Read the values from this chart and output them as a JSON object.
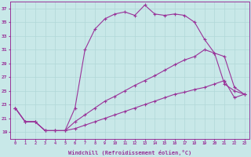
{
  "xlabel": "Windchill (Refroidissement éolien,°C)",
  "background_color": "#c8e8e8",
  "line_color": "#993399",
  "grid_color": "#aacccc",
  "x_ticks": [
    0,
    1,
    2,
    3,
    4,
    5,
    6,
    7,
    8,
    9,
    10,
    11,
    12,
    13,
    14,
    15,
    16,
    17,
    18,
    19,
    20,
    21,
    22,
    23
  ],
  "y_ticks": [
    19,
    21,
    23,
    25,
    27,
    29,
    31,
    33,
    35,
    37
  ],
  "ylim": [
    18.0,
    38.0
  ],
  "xlim": [
    -0.5,
    23.5
  ],
  "line1_x": [
    0,
    1,
    2,
    3,
    4,
    5,
    6,
    7,
    8,
    9,
    10,
    11,
    12,
    13,
    14,
    15,
    16,
    17,
    18,
    19,
    20,
    21,
    22,
    23
  ],
  "line1_y": [
    22.5,
    20.5,
    20.5,
    19.2,
    19.2,
    19.2,
    22.5,
    31.0,
    34.0,
    35.5,
    36.2,
    36.5,
    36.0,
    37.5,
    36.2,
    36.0,
    36.2,
    36.0,
    35.0,
    32.5,
    30.5,
    26.0,
    25.0,
    24.5
  ],
  "line2_x": [
    0,
    1,
    2,
    3,
    4,
    5,
    6,
    7,
    8,
    9,
    10,
    11,
    12,
    13,
    14,
    15,
    16,
    17,
    18,
    19,
    20,
    21,
    22,
    23
  ],
  "line2_y": [
    22.5,
    20.5,
    20.5,
    19.2,
    19.2,
    19.2,
    20.5,
    21.5,
    22.5,
    23.5,
    24.2,
    25.0,
    25.8,
    26.5,
    27.2,
    28.0,
    28.8,
    29.5,
    30.0,
    31.0,
    30.5,
    30.0,
    25.5,
    24.5
  ],
  "line3_x": [
    0,
    1,
    2,
    3,
    4,
    5,
    6,
    7,
    8,
    9,
    10,
    11,
    12,
    13,
    14,
    15,
    16,
    17,
    18,
    19,
    20,
    21,
    22,
    23
  ],
  "line3_y": [
    22.5,
    20.5,
    20.5,
    19.2,
    19.2,
    19.2,
    19.5,
    20.0,
    20.5,
    21.0,
    21.5,
    22.0,
    22.5,
    23.0,
    23.5,
    24.0,
    24.5,
    24.8,
    25.2,
    25.5,
    26.0,
    26.5,
    24.0,
    24.5
  ]
}
